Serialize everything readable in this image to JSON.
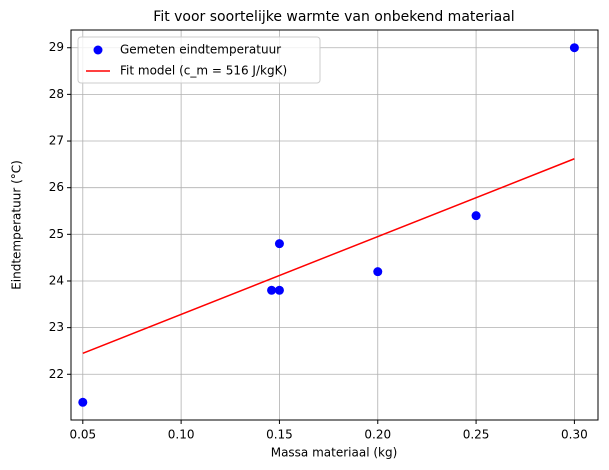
{
  "chart_data": {
    "type": "scatter",
    "title": "Fit voor soortelijke warmte van onbekend materiaal",
    "xlabel": "Massa materiaal (kg)",
    "ylabel": "Eindtemperatuur (°C)",
    "series": [
      {
        "name": "Gemeten eindtemperatuur",
        "kind": "scatter",
        "color": "#0000ff",
        "x": [
          0.05,
          0.146,
          0.15,
          0.15,
          0.2,
          0.25,
          0.3
        ],
        "values": [
          21.4,
          23.8,
          23.8,
          24.8,
          24.2,
          25.4,
          29.0
        ]
      },
      {
        "name": "Fit model (c_m = 516 J/kgK)",
        "kind": "line",
        "color": "#ff0000",
        "x": [
          0.05,
          0.3
        ],
        "values": [
          22.45,
          26.62
        ]
      }
    ],
    "xlim": [
      0.044,
      0.312
    ],
    "ylim": [
      21.02,
      29.38
    ],
    "xticks": [
      0.05,
      {
        "value": 0.1,
        "label": "0.10"
      },
      0.15,
      {
        "value": 0.2,
        "label": "0.20"
      },
      0.25,
      {
        "value": 0.3,
        "label": "0.30"
      }
    ],
    "yticks": [
      22,
      23,
      24,
      25,
      26,
      27,
      28,
      29
    ],
    "grid": true,
    "legend": "upper left"
  }
}
